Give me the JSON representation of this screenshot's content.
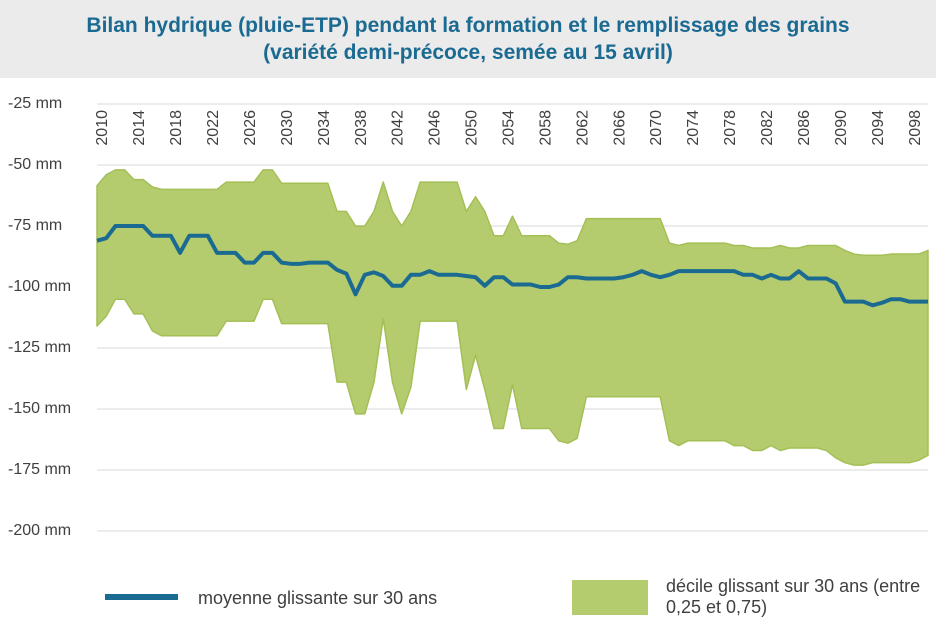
{
  "chart_data": {
    "type": "line_band",
    "title": "Bilan hydrique (pluie-ETP) pendant la formation et le remplissage des grains (variété demi-précoce, semée au 15 avril)",
    "x": [
      2010,
      2011,
      2012,
      2013,
      2014,
      2015,
      2016,
      2017,
      2018,
      2019,
      2020,
      2021,
      2022,
      2023,
      2024,
      2025,
      2026,
      2027,
      2028,
      2029,
      2030,
      2031,
      2032,
      2033,
      2034,
      2035,
      2036,
      2037,
      2038,
      2039,
      2040,
      2041,
      2042,
      2043,
      2044,
      2045,
      2046,
      2047,
      2048,
      2049,
      2050,
      2051,
      2052,
      2053,
      2054,
      2055,
      2056,
      2057,
      2058,
      2059,
      2060,
      2061,
      2062,
      2063,
      2064,
      2065,
      2066,
      2067,
      2068,
      2069,
      2070,
      2071,
      2072,
      2073,
      2074,
      2075,
      2076,
      2077,
      2078,
      2079,
      2080,
      2081,
      2082,
      2083,
      2084,
      2085,
      2086,
      2087,
      2088,
      2089,
      2090,
      2091,
      2092,
      2093,
      2094,
      2095,
      2096,
      2097,
      2098,
      2099,
      2100
    ],
    "xlim": [
      2010,
      2100
    ],
    "xticks": [
      2010,
      2014,
      2018,
      2022,
      2026,
      2030,
      2034,
      2038,
      2042,
      2046,
      2050,
      2054,
      2058,
      2062,
      2066,
      2070,
      2074,
      2078,
      2082,
      2086,
      2090,
      2094,
      2098
    ],
    "ylim": [
      -200,
      -25
    ],
    "yticks": [
      {
        "value": -25,
        "label": "-25 mm"
      },
      {
        "value": -50,
        "label": "-50 mm"
      },
      {
        "value": -75,
        "label": "-75 mm"
      },
      {
        "value": -100,
        "label": "-100 mm"
      },
      {
        "value": -125,
        "label": "-125 mm"
      },
      {
        "value": -150,
        "label": "-150 mm"
      },
      {
        "value": -175,
        "label": "-175 mm"
      },
      {
        "value": -200,
        "label": "-200 mm"
      }
    ],
    "grid": true,
    "series": [
      {
        "name": "moyenne glissante sur 30 ans",
        "color": "#1b6a92",
        "values": [
          -81,
          -80,
          -75,
          -75,
          -75,
          -75,
          -79,
          -79,
          -79,
          -86,
          -79,
          -79,
          -79,
          -86,
          -86,
          -86,
          -90,
          -90,
          -86,
          -86,
          -90,
          -90.5,
          -90.5,
          -90,
          -90,
          -90,
          -93,
          -94.5,
          -103,
          -95,
          -94,
          -95.5,
          -99.5,
          -99.5,
          -95,
          -95,
          -93.5,
          -95,
          -95,
          -95,
          -95.5,
          -96,
          -99.5,
          -96,
          -96,
          -99,
          -99,
          -99,
          -100,
          -100,
          -99,
          -96,
          -96,
          -96.5,
          -96.5,
          -96.5,
          -96.5,
          -96,
          -95,
          -93.5,
          -95,
          -96,
          -95,
          -93.5,
          -93.5,
          -93.5,
          -93.5,
          -93.5,
          -93.5,
          -93.5,
          -95,
          -95,
          -96.5,
          -95,
          -96.5,
          -96.5,
          -93.5,
          -96.5,
          -96.5,
          -96.5,
          -98.5,
          -106,
          -106,
          -106,
          -107.5,
          -106.5,
          -105,
          -105,
          -106,
          -106,
          -106
        ]
      },
      {
        "name": "décile glissant sur 30 ans (entre 0,25 et 0,75)",
        "color": "#b5cc6e",
        "high": [
          -58.5,
          -54,
          -52,
          -52,
          -56,
          -56,
          -59,
          -60,
          -60,
          -60,
          -60,
          -60,
          -60,
          -60,
          -57,
          -57,
          -57,
          -57,
          -52,
          -52,
          -57.5,
          -57.5,
          -57.5,
          -57.5,
          -57.5,
          -57.5,
          -69,
          -69,
          -75,
          -75,
          -69,
          -57,
          -69,
          -75,
          -69,
          -57,
          -57,
          -57,
          -57,
          -57,
          -69,
          -63,
          -69,
          -79,
          -79,
          -71,
          -79,
          -79,
          -79,
          -79,
          -82,
          -82.5,
          -81,
          -72,
          -72,
          -72,
          -72,
          -72,
          -72,
          -72,
          -72,
          -72,
          -82,
          -83,
          -82,
          -82,
          -82,
          -82,
          -82,
          -83,
          -83,
          -84,
          -84,
          -84,
          -83,
          -84,
          -84,
          -83,
          -83,
          -83,
          -83,
          -85,
          -86.5,
          -87,
          -87,
          -87,
          -86.5,
          -86.5,
          -86.5,
          -86.5,
          -85
        ],
        "low": [
          -116,
          -112,
          -105,
          -105,
          -111,
          -111,
          -118,
          -120,
          -120,
          -120,
          -120,
          -120,
          -120,
          -120,
          -114,
          -114,
          -114,
          -114,
          -105,
          -105,
          -115,
          -115,
          -115,
          -115,
          -115,
          -115,
          -139,
          -139,
          -152,
          -152,
          -139,
          -113,
          -139,
          -152,
          -141,
          -114,
          -114,
          -114,
          -114,
          -114,
          -142,
          -128,
          -142,
          -158,
          -158,
          -140,
          -158,
          -158,
          -158,
          -158,
          -163,
          -164,
          -162,
          -145,
          -145,
          -145,
          -145,
          -145,
          -145,
          -145,
          -145,
          -145,
          -163,
          -165,
          -163,
          -163,
          -163,
          -163,
          -163,
          -165,
          -165,
          -167,
          -167,
          -165,
          -167,
          -166,
          -166,
          -166,
          -166,
          -167,
          -170,
          -172,
          -173,
          -173,
          -172,
          -172,
          -172,
          -172,
          -172,
          -171,
          -169
        ]
      }
    ]
  }
}
